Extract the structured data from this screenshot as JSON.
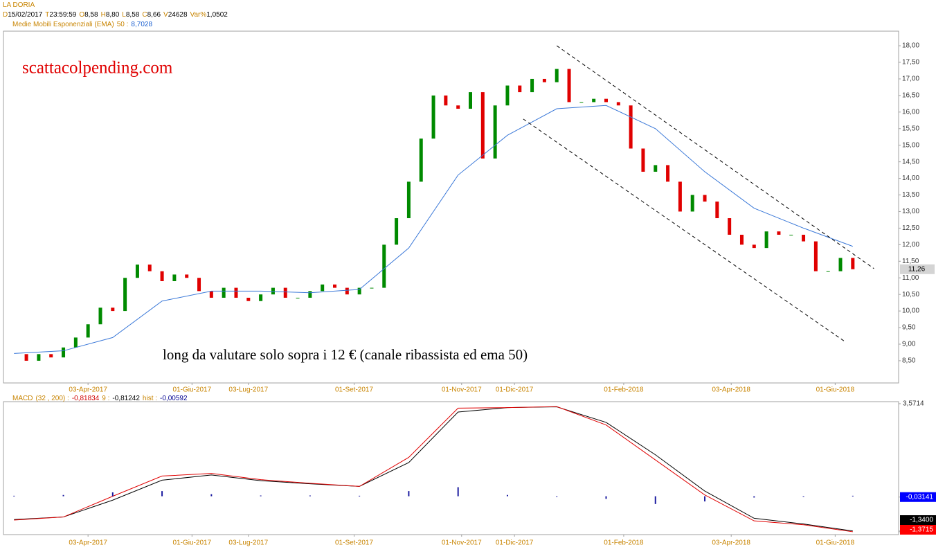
{
  "header": {
    "title": "LA DORIA",
    "quote": [
      [
        "D",
        "15/02/2017"
      ],
      [
        "T",
        "23:59:59"
      ],
      [
        "O",
        "8,58"
      ],
      [
        "H",
        "8,80"
      ],
      [
        "L",
        "8,58"
      ],
      [
        "C",
        "8,66"
      ],
      [
        "V",
        "24628"
      ],
      [
        "Var%",
        "1,0502"
      ]
    ],
    "indicator": [
      "Medie Mobili Esponenziali (EMA)",
      "50 :",
      "8,7028"
    ]
  },
  "chart_data": [
    {
      "type": "candlestick",
      "watermark": "scattacolpending.com",
      "annotation": "long da valutare solo sopra i 12 € (canale ribassista ed ema 50)",
      "xlim": [
        "2017-02-14",
        "2018-07-07"
      ],
      "xticks": [
        {
          "value": "2017-04-03",
          "label": "03-Apr-2017"
        },
        {
          "value": "2017-06-01",
          "label": "01-Giu-2017"
        },
        {
          "value": "2017-07-03",
          "label": "03-Lug-2017"
        },
        {
          "value": "2017-09-01",
          "label": "01-Set-2017"
        },
        {
          "value": "2017-11-01",
          "label": "01-Nov-2017"
        },
        {
          "value": "2017-12-01",
          "label": "01-Dic-2017"
        },
        {
          "value": "2018-02-01",
          "label": "01-Feb-2018"
        },
        {
          "value": "2018-04-03",
          "label": "03-Apr-2018"
        },
        {
          "value": "2018-06-01",
          "label": "01-Giu-2018"
        }
      ],
      "ylim": [
        7.83,
        18.44
      ],
      "yticks": [
        {
          "value": 8.5,
          "label": "8,50"
        },
        {
          "value": 9,
          "label": "9,00"
        },
        {
          "value": 9.5,
          "label": "9,50"
        },
        {
          "value": 10,
          "label": "10,00"
        },
        {
          "value": 10.5,
          "label": "10,50"
        },
        {
          "value": 11,
          "label": "11,00"
        },
        {
          "value": 11.5,
          "label": "11,50"
        },
        {
          "value": 12,
          "label": "12,00"
        },
        {
          "value": 12.5,
          "label": "12,50"
        },
        {
          "value": 13,
          "label": "13,00"
        },
        {
          "value": 13.5,
          "label": "13,50"
        },
        {
          "value": 14,
          "label": "14,00"
        },
        {
          "value": 14.5,
          "label": "14,50"
        },
        {
          "value": 15,
          "label": "15,00"
        },
        {
          "value": 15.5,
          "label": "15,50"
        },
        {
          "value": 16,
          "label": "16,00"
        },
        {
          "value": 16.5,
          "label": "16,50"
        },
        {
          "value": 17,
          "label": "17,00"
        },
        {
          "value": 17.5,
          "label": "17,50"
        },
        {
          "value": 18,
          "label": "18,00"
        }
      ],
      "last_price": {
        "value": 11.26,
        "label": "11,26"
      },
      "x": [
        "2017-02-20",
        "2017-02-27",
        "2017-03-06",
        "2017-03-13",
        "2017-03-20",
        "2017-03-27",
        "2017-04-03",
        "2017-04-10",
        "2017-04-17",
        "2017-04-24",
        "2017-05-01",
        "2017-05-08",
        "2017-05-15",
        "2017-05-22",
        "2017-05-29",
        "2017-06-05",
        "2017-06-12",
        "2017-06-19",
        "2017-06-26",
        "2017-07-03",
        "2017-07-10",
        "2017-07-17",
        "2017-07-24",
        "2017-07-31",
        "2017-08-07",
        "2017-08-14",
        "2017-08-21",
        "2017-08-28",
        "2017-09-04",
        "2017-09-11",
        "2017-09-18",
        "2017-09-25",
        "2017-10-02",
        "2017-10-09",
        "2017-10-16",
        "2017-10-23",
        "2017-10-30",
        "2017-11-06",
        "2017-11-13",
        "2017-11-20",
        "2017-11-27",
        "2017-12-04",
        "2017-12-11",
        "2017-12-18",
        "2017-12-25",
        "2018-01-01",
        "2018-01-08",
        "2018-01-15",
        "2018-01-22",
        "2018-01-29",
        "2018-02-05",
        "2018-02-12",
        "2018-02-19",
        "2018-02-26",
        "2018-03-05",
        "2018-03-12",
        "2018-03-19",
        "2018-03-26",
        "2018-04-02",
        "2018-04-09",
        "2018-04-16",
        "2018-04-23",
        "2018-04-30",
        "2018-05-07",
        "2018-05-14",
        "2018-05-21",
        "2018-05-28",
        "2018-06-04",
        "2018-06-11"
      ],
      "series": [
        {
          "up_color": "#008a00",
          "down_color": "#e00000",
          "values": [
            8.7,
            8.5,
            8.7,
            8.6,
            8.9,
            9.2,
            9.6,
            10.1,
            10.0,
            11.0,
            11.4,
            11.2,
            10.9,
            11.1,
            11.0,
            10.6,
            10.4,
            10.7,
            10.4,
            10.3,
            10.5,
            10.7,
            10.4,
            10.4,
            10.6,
            10.8,
            10.7,
            10.5,
            10.7,
            10.7,
            12.0,
            12.8,
            13.9,
            15.2,
            16.5,
            16.2,
            16.1,
            16.6,
            14.6,
            16.2,
            16.8,
            16.6,
            17.0,
            16.9,
            17.3,
            16.3,
            16.3,
            16.4,
            16.3,
            16.2,
            14.9,
            14.2,
            14.4,
            13.9,
            13.0,
            13.5,
            13.3,
            12.8,
            12.3,
            12.0,
            11.9,
            12.4,
            12.3,
            12.3,
            12.1,
            11.2,
            11.2,
            11.6,
            11.26
          ]
        },
        {
          "color": "#3a78d8",
          "x": [
            "2017-02-20",
            "2017-03-20",
            "2017-04-17",
            "2017-05-15",
            "2017-06-12",
            "2017-07-10",
            "2017-08-07",
            "2017-09-04",
            "2017-10-02",
            "2017-10-30",
            "2017-11-27",
            "2017-12-25",
            "2018-01-22",
            "2018-02-19",
            "2018-03-19",
            "2018-04-16",
            "2018-05-14",
            "2018-06-11"
          ],
          "values": [
            8.72,
            8.8,
            9.2,
            10.3,
            10.6,
            10.6,
            10.55,
            10.65,
            11.9,
            14.1,
            15.3,
            16.1,
            16.2,
            15.5,
            14.2,
            13.1,
            12.5,
            11.95
          ]
        }
      ],
      "channel": [
        {
          "x": [
            "2017-12-25",
            "2018-06-23"
          ],
          "values": [
            18.0,
            11.28
          ]
        },
        {
          "x": [
            "2017-12-06",
            "2018-06-07"
          ],
          "values": [
            15.79,
            9.06
          ]
        }
      ]
    },
    {
      "type": "line",
      "header": [
        "MACD",
        "(32 , 200) :",
        "-0,81834",
        "9 :",
        "-0,81242",
        "hist :",
        "-0,00592"
      ],
      "xlim": [
        "2017-02-14",
        "2018-07-07"
      ],
      "xticks": [
        {
          "value": "2017-04-03",
          "label": "03-Apr-2017"
        },
        {
          "value": "2017-06-01",
          "label": "01-Giu-2017"
        },
        {
          "value": "2017-07-03",
          "label": "03-Lug-2017"
        },
        {
          "value": "2017-09-01",
          "label": "01-Set-2017"
        },
        {
          "value": "2017-11-01",
          "label": "01-Nov-2017"
        },
        {
          "value": "2017-12-01",
          "label": "01-Dic-2017"
        },
        {
          "value": "2018-02-01",
          "label": "01-Feb-2018"
        },
        {
          "value": "2018-04-03",
          "label": "03-Apr-2018"
        },
        {
          "value": "2018-06-01",
          "label": "01-Giu-2018"
        }
      ],
      "ylim": [
        -1.48,
        3.65
      ],
      "yticks": [
        {
          "value": 3.5714,
          "label": "3,5714"
        },
        {
          "value": -0.03141,
          "label": "-0,03141"
        },
        {
          "value": -1.34,
          "label": "-1,3400"
        },
        {
          "value": -1.3715,
          "label": "-1,3715"
        }
      ],
      "ytick_colors": [
        null,
        "#0000ff",
        "#000000",
        "#ff0000"
      ],
      "x": [
        "2017-02-20",
        "2017-03-20",
        "2017-04-17",
        "2017-05-15",
        "2017-06-12",
        "2017-07-10",
        "2017-08-07",
        "2017-09-04",
        "2017-10-02",
        "2017-10-30",
        "2017-11-27",
        "2017-12-25",
        "2018-01-22",
        "2018-02-19",
        "2018-03-19",
        "2018-04-16",
        "2018-05-14",
        "2018-06-11"
      ],
      "series": [
        {
          "color": "#000000",
          "values": [
            -0.9,
            -0.8,
            -0.15,
            0.62,
            0.82,
            0.6,
            0.48,
            0.38,
            1.3,
            3.25,
            3.42,
            3.45,
            2.85,
            1.6,
            0.2,
            -0.85,
            -1.07,
            -1.34
          ]
        },
        {
          "color": "#e00000",
          "values": [
            -0.92,
            -0.8,
            0.0,
            0.78,
            0.88,
            0.64,
            0.5,
            0.38,
            1.5,
            3.4,
            3.42,
            3.46,
            2.75,
            1.4,
            0.05,
            -0.95,
            -1.1,
            -1.3715
          ]
        },
        {
          "type": "bar",
          "color": "#1c1ca0",
          "values": [
            0.02,
            0.05,
            0.15,
            0.2,
            0.08,
            0.03,
            0.03,
            0.02,
            0.2,
            0.35,
            0.05,
            0.0,
            -0.1,
            -0.3,
            -0.2,
            -0.05,
            0.0,
            0.02
          ]
        }
      ]
    }
  ]
}
